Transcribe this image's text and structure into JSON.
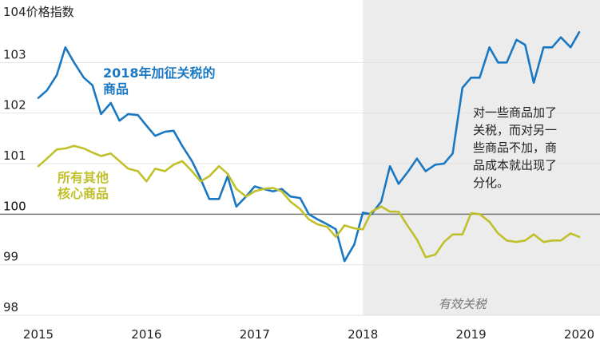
{
  "chart_data": {
    "type": "line",
    "title": "104价格指数",
    "xlabel": "",
    "ylabel": "",
    "xlim": [
      2015,
      2020
    ],
    "ylim": [
      98,
      104
    ],
    "x_ticks": [
      "2015",
      "2016",
      "2017",
      "2018",
      "2019",
      "2020"
    ],
    "y_ticks": [
      "98",
      "99",
      "100",
      "101",
      "102",
      "103"
    ],
    "grid": "horizontal",
    "baseline": 100,
    "shaded_region": {
      "from": 2018.0,
      "to": 2020.1,
      "label": "有效关税"
    },
    "annotation": [
      "对一些商品加了",
      "关税，而对另一",
      "些商品不加，商",
      "品成本就出现了",
      "分化。"
    ],
    "series": [
      {
        "name": "2018年加征关税的商品",
        "label_lines": [
          "2018年加征关税的",
          "商品"
        ],
        "color": "#1a78c2",
        "x": [
          2015.0,
          2015.08,
          2015.17,
          2015.25,
          2015.33,
          2015.42,
          2015.5,
          2015.58,
          2015.67,
          2015.75,
          2015.83,
          2015.92,
          2016.0,
          2016.08,
          2016.17,
          2016.25,
          2016.33,
          2016.42,
          2016.5,
          2016.58,
          2016.67,
          2016.75,
          2016.83,
          2016.92,
          2017.0,
          2017.08,
          2017.17,
          2017.25,
          2017.33,
          2017.42,
          2017.5,
          2017.58,
          2017.67,
          2017.75,
          2017.83,
          2017.92,
          2018.0,
          2018.08,
          2018.17,
          2018.25,
          2018.33,
          2018.42,
          2018.5,
          2018.58,
          2018.67,
          2018.75,
          2018.83,
          2018.92,
          2019.0,
          2019.08,
          2019.17,
          2019.25,
          2019.33,
          2019.42,
          2019.5,
          2019.58,
          2019.67,
          2019.75,
          2019.83,
          2019.92,
          2020.0
        ],
        "values": [
          102.3,
          102.45,
          102.75,
          103.3,
          103.0,
          102.7,
          102.55,
          101.98,
          102.2,
          101.85,
          101.98,
          101.96,
          101.75,
          101.55,
          101.63,
          101.65,
          101.35,
          101.05,
          100.7,
          100.3,
          100.3,
          100.75,
          100.15,
          100.35,
          100.55,
          100.5,
          100.45,
          100.5,
          100.35,
          100.32,
          100.0,
          99.9,
          99.8,
          99.7,
          99.07,
          99.4,
          100.03,
          100.0,
          100.25,
          100.95,
          100.6,
          100.85,
          101.1,
          100.85,
          100.98,
          101.0,
          101.2,
          102.5,
          102.7,
          102.7,
          103.3,
          103.0,
          103.0,
          103.45,
          103.35,
          102.6,
          103.3,
          103.3,
          103.5,
          103.3,
          103.6
        ]
      },
      {
        "name": "所有其他核心商品",
        "label_lines": [
          "所有其他",
          "核心商品"
        ],
        "color": "#c0c02a",
        "x": [
          2015.0,
          2015.08,
          2015.17,
          2015.25,
          2015.33,
          2015.42,
          2015.5,
          2015.58,
          2015.67,
          2015.75,
          2015.83,
          2015.92,
          2016.0,
          2016.08,
          2016.17,
          2016.25,
          2016.33,
          2016.42,
          2016.5,
          2016.58,
          2016.67,
          2016.75,
          2016.83,
          2016.92,
          2017.0,
          2017.08,
          2017.17,
          2017.25,
          2017.33,
          2017.42,
          2017.5,
          2017.58,
          2017.67,
          2017.75,
          2017.83,
          2017.92,
          2018.0,
          2018.08,
          2018.17,
          2018.25,
          2018.33,
          2018.42,
          2018.5,
          2018.58,
          2018.67,
          2018.75,
          2018.83,
          2018.92,
          2019.0,
          2019.08,
          2019.17,
          2019.25,
          2019.33,
          2019.42,
          2019.5,
          2019.58,
          2019.67,
          2019.75,
          2019.83,
          2019.92,
          2020.0
        ],
        "values": [
          100.95,
          101.1,
          101.28,
          101.3,
          101.35,
          101.3,
          101.22,
          101.15,
          101.2,
          101.05,
          100.9,
          100.85,
          100.65,
          100.9,
          100.85,
          100.98,
          101.05,
          100.85,
          100.65,
          100.75,
          100.95,
          100.8,
          100.5,
          100.35,
          100.45,
          100.5,
          100.52,
          100.45,
          100.25,
          100.1,
          99.9,
          99.8,
          99.75,
          99.55,
          99.78,
          99.72,
          99.7,
          100.05,
          100.15,
          100.05,
          100.05,
          99.75,
          99.5,
          99.15,
          99.2,
          99.45,
          99.6,
          99.6,
          100.02,
          100.0,
          99.85,
          99.62,
          99.48,
          99.45,
          99.48,
          99.6,
          99.45,
          99.48,
          99.48,
          99.62,
          99.55
        ]
      }
    ]
  }
}
